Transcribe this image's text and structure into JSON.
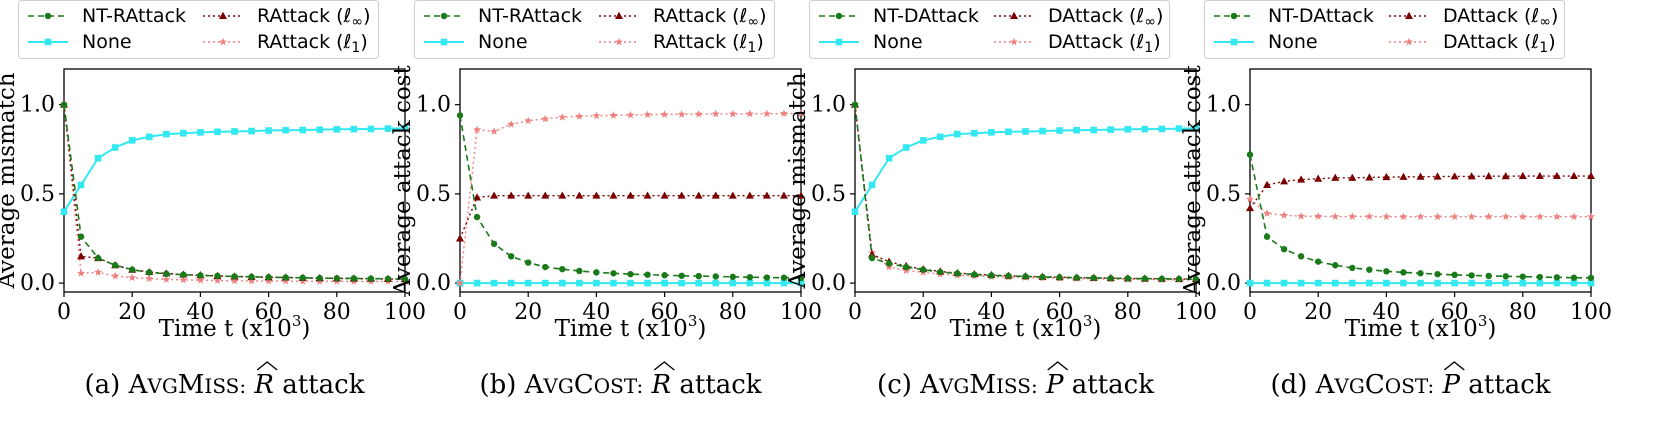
{
  "colors": {
    "nt": "#1a7a1a",
    "none": "#33e8f0",
    "linf": "#7a0000",
    "l1": "#f08080"
  },
  "chart_data": [
    {
      "type": "line",
      "caption": {
        "label": "(a)",
        "metric": "AVGMISS:",
        "metric_first": "A",
        "metric_sc1": "VG",
        "metric_cap2": "M",
        "metric_sc2": "ISS:",
        "symbol": "R",
        "suffix": "attack"
      },
      "xlabel": "Time t (x10",
      "xlabel_sup": "3",
      "xlabel_close": ")",
      "ylabel": "Average mismatch",
      "xlim": [
        0,
        100
      ],
      "ylim": [
        -0.05,
        1.2
      ],
      "xticks": [
        "0",
        "20",
        "40",
        "60",
        "80",
        "100"
      ],
      "yticks": [
        "0.0",
        "0.5",
        "1.0"
      ],
      "legend": {
        "nt": "NT-RAttack",
        "none": "None",
        "linf": "RAttack (ℓ∞)",
        "l1": "RAttack (ℓ1)"
      },
      "series": [
        {
          "key": "nt",
          "name": "NT-RAttack",
          "x": [
            0,
            5,
            10,
            15,
            20,
            25,
            30,
            35,
            40,
            45,
            50,
            55,
            60,
            65,
            70,
            75,
            80,
            85,
            90,
            95,
            100
          ],
          "values": [
            1.0,
            0.26,
            0.14,
            0.1,
            0.075,
            0.06,
            0.052,
            0.047,
            0.043,
            0.04,
            0.037,
            0.035,
            0.033,
            0.031,
            0.03,
            0.028,
            0.027,
            0.026,
            0.025,
            0.024,
            0.023
          ]
        },
        {
          "key": "none",
          "name": "None",
          "x": [
            0,
            5,
            10,
            15,
            20,
            25,
            30,
            35,
            40,
            45,
            50,
            55,
            60,
            65,
            70,
            75,
            80,
            85,
            90,
            95,
            100
          ],
          "values": [
            0.4,
            0.55,
            0.7,
            0.76,
            0.8,
            0.82,
            0.835,
            0.84,
            0.845,
            0.848,
            0.85,
            0.852,
            0.855,
            0.857,
            0.858,
            0.86,
            0.862,
            0.863,
            0.864,
            0.866,
            0.868
          ]
        },
        {
          "key": "linf",
          "name": "RAttack (ℓ∞)",
          "x": [
            0,
            5,
            10,
            15,
            20,
            25,
            30,
            35,
            40,
            45,
            50,
            55,
            60,
            65,
            70,
            75,
            80,
            85,
            90,
            95,
            100
          ],
          "values": [
            1.0,
            0.15,
            0.14,
            0.1,
            0.075,
            0.062,
            0.054,
            0.048,
            0.044,
            0.04,
            0.037,
            0.035,
            0.033,
            0.031,
            0.029,
            0.028,
            0.026,
            0.025,
            0.024,
            0.023,
            0.022
          ]
        },
        {
          "key": "l1",
          "name": "RAttack (ℓ1)",
          "x": [
            0,
            5,
            10,
            15,
            20,
            25,
            30,
            35,
            40,
            45,
            50,
            55,
            60,
            65,
            70,
            75,
            80,
            85,
            90,
            95,
            100
          ],
          "values": [
            1.0,
            0.055,
            0.06,
            0.04,
            0.03,
            0.025,
            0.02,
            0.018,
            0.016,
            0.014,
            0.013,
            0.012,
            0.011,
            0.011,
            0.01,
            0.01,
            0.01,
            0.009,
            0.009,
            0.009,
            0.009
          ]
        }
      ]
    },
    {
      "type": "line",
      "caption": {
        "label": "(b)",
        "metric": "AVGCOST:",
        "metric_first": "A",
        "metric_sc1": "VG",
        "metric_cap2": "C",
        "metric_sc2": "OST:",
        "symbol": "R",
        "suffix": "attack"
      },
      "xlabel": "Time t (x10",
      "xlabel_sup": "3",
      "xlabel_close": ")",
      "ylabel": "Average attack cost",
      "xlim": [
        0,
        100
      ],
      "ylim": [
        -0.05,
        1.2
      ],
      "xticks": [
        "0",
        "20",
        "40",
        "60",
        "80",
        "100"
      ],
      "yticks": [
        "0.0",
        "0.5",
        "1.0"
      ],
      "legend": {
        "nt": "NT-RAttack",
        "none": "None",
        "linf": "RAttack (ℓ∞)",
        "l1": "RAttack (ℓ1)"
      },
      "series": [
        {
          "key": "nt",
          "name": "NT-RAttack",
          "x": [
            0,
            5,
            10,
            15,
            20,
            25,
            30,
            35,
            40,
            45,
            50,
            55,
            60,
            65,
            70,
            75,
            80,
            85,
            90,
            95,
            100
          ],
          "values": [
            0.94,
            0.37,
            0.22,
            0.15,
            0.115,
            0.09,
            0.078,
            0.068,
            0.06,
            0.055,
            0.05,
            0.047,
            0.044,
            0.041,
            0.039,
            0.037,
            0.035,
            0.033,
            0.031,
            0.03,
            0.028
          ]
        },
        {
          "key": "none",
          "name": "None",
          "x": [
            0,
            5,
            10,
            15,
            20,
            25,
            30,
            35,
            40,
            45,
            50,
            55,
            60,
            65,
            70,
            75,
            80,
            85,
            90,
            95,
            100
          ],
          "values": [
            0,
            0,
            0,
            0,
            0,
            0,
            0,
            0,
            0,
            0,
            0,
            0,
            0,
            0,
            0,
            0,
            0,
            0,
            0,
            0,
            0
          ]
        },
        {
          "key": "linf",
          "name": "RAttack (ℓ∞)",
          "x": [
            0,
            5,
            10,
            15,
            20,
            25,
            30,
            35,
            40,
            45,
            50,
            55,
            60,
            65,
            70,
            75,
            80,
            85,
            90,
            95,
            100
          ],
          "values": [
            0.25,
            0.48,
            0.49,
            0.49,
            0.49,
            0.49,
            0.49,
            0.49,
            0.49,
            0.49,
            0.49,
            0.49,
            0.49,
            0.49,
            0.49,
            0.49,
            0.49,
            0.49,
            0.49,
            0.49,
            0.49
          ]
        },
        {
          "key": "l1",
          "name": "RAttack (ℓ1)",
          "x": [
            0,
            5,
            10,
            15,
            20,
            25,
            30,
            35,
            40,
            45,
            50,
            55,
            60,
            65,
            70,
            75,
            80,
            85,
            90,
            95,
            100
          ],
          "values": [
            0.0,
            0.86,
            0.85,
            0.89,
            0.91,
            0.92,
            0.93,
            0.935,
            0.938,
            0.94,
            0.942,
            0.944,
            0.945,
            0.946,
            0.947,
            0.948,
            0.948,
            0.949,
            0.949,
            0.95,
            0.95
          ]
        }
      ]
    },
    {
      "type": "line",
      "caption": {
        "label": "(c)",
        "metric": "AVGMISS:",
        "metric_first": "A",
        "metric_sc1": "VG",
        "metric_cap2": "M",
        "metric_sc2": "ISS:",
        "symbol": "P",
        "suffix": "attack"
      },
      "xlabel": "Time t (x10",
      "xlabel_sup": "3",
      "xlabel_close": ")",
      "ylabel": "Average mismatch",
      "xlim": [
        0,
        100
      ],
      "ylim": [
        -0.05,
        1.2
      ],
      "xticks": [
        "0",
        "20",
        "40",
        "60",
        "80",
        "100"
      ],
      "yticks": [
        "0.0",
        "0.5",
        "1.0"
      ],
      "legend": {
        "nt": "NT-DAttack",
        "none": "None",
        "linf": "DAttack (ℓ∞)",
        "l1": "DAttack (ℓ1)"
      },
      "series": [
        {
          "key": "nt",
          "name": "NT-DAttack",
          "x": [
            0,
            5,
            10,
            15,
            20,
            25,
            30,
            35,
            40,
            45,
            50,
            55,
            60,
            65,
            70,
            75,
            80,
            85,
            90,
            95,
            100
          ],
          "values": [
            1.0,
            0.14,
            0.11,
            0.09,
            0.075,
            0.062,
            0.054,
            0.048,
            0.043,
            0.04,
            0.037,
            0.034,
            0.032,
            0.03,
            0.029,
            0.027,
            0.026,
            0.025,
            0.024,
            0.023,
            0.022
          ]
        },
        {
          "key": "none",
          "name": "None",
          "x": [
            0,
            5,
            10,
            15,
            20,
            25,
            30,
            35,
            40,
            45,
            50,
            55,
            60,
            65,
            70,
            75,
            80,
            85,
            90,
            95,
            100
          ],
          "values": [
            0.4,
            0.55,
            0.7,
            0.76,
            0.8,
            0.82,
            0.835,
            0.84,
            0.845,
            0.848,
            0.85,
            0.852,
            0.855,
            0.857,
            0.858,
            0.86,
            0.862,
            0.863,
            0.864,
            0.866,
            0.868
          ]
        },
        {
          "key": "linf",
          "name": "DAttack (ℓ∞)",
          "x": [
            0,
            5,
            10,
            15,
            20,
            25,
            30,
            35,
            40,
            45,
            50,
            55,
            60,
            65,
            70,
            75,
            80,
            85,
            90,
            95,
            100
          ],
          "values": [
            1.0,
            0.16,
            0.12,
            0.095,
            0.078,
            0.065,
            0.056,
            0.05,
            0.045,
            0.041,
            0.038,
            0.035,
            0.033,
            0.031,
            0.029,
            0.028,
            0.026,
            0.025,
            0.024,
            0.023,
            0.022
          ]
        },
        {
          "key": "l1",
          "name": "DAttack (ℓ1)",
          "x": [
            0,
            5,
            10,
            15,
            20,
            25,
            30,
            35,
            40,
            45,
            50,
            55,
            60,
            65,
            70,
            75,
            80,
            85,
            90,
            95,
            100
          ],
          "values": [
            1.0,
            0.17,
            0.09,
            0.07,
            0.06,
            0.05,
            0.044,
            0.04,
            0.036,
            0.033,
            0.031,
            0.029,
            0.027,
            0.025,
            0.024,
            0.022,
            0.021,
            0.02,
            0.019,
            0.018,
            0.017
          ]
        }
      ]
    },
    {
      "type": "line",
      "caption": {
        "label": "(d)",
        "metric": "AVGCOST:",
        "metric_first": "A",
        "metric_sc1": "VG",
        "metric_cap2": "C",
        "metric_sc2": "OST:",
        "symbol": "P",
        "suffix": "attack"
      },
      "xlabel": "Time t (x10",
      "xlabel_sup": "3",
      "xlabel_close": ")",
      "ylabel": "Average attack cost",
      "xlim": [
        0,
        100
      ],
      "ylim": [
        -0.05,
        1.2
      ],
      "xticks": [
        "0",
        "20",
        "40",
        "60",
        "80",
        "100"
      ],
      "yticks": [
        "0.0",
        "0.5",
        "1.0"
      ],
      "legend": {
        "nt": "NT-DAttack",
        "none": "None",
        "linf": "DAttack (ℓ∞)",
        "l1": "DAttack (ℓ1)"
      },
      "series": [
        {
          "key": "nt",
          "name": "NT-DAttack",
          "x": [
            0,
            5,
            10,
            15,
            20,
            25,
            30,
            35,
            40,
            45,
            50,
            55,
            60,
            65,
            70,
            75,
            80,
            85,
            90,
            95,
            100
          ],
          "values": [
            0.72,
            0.26,
            0.19,
            0.15,
            0.12,
            0.1,
            0.085,
            0.075,
            0.066,
            0.06,
            0.055,
            0.05,
            0.046,
            0.043,
            0.04,
            0.038,
            0.036,
            0.034,
            0.032,
            0.03,
            0.029
          ]
        },
        {
          "key": "none",
          "name": "None",
          "x": [
            0,
            5,
            10,
            15,
            20,
            25,
            30,
            35,
            40,
            45,
            50,
            55,
            60,
            65,
            70,
            75,
            80,
            85,
            90,
            95,
            100
          ],
          "values": [
            0,
            0,
            0,
            0,
            0,
            0,
            0,
            0,
            0,
            0,
            0,
            0,
            0,
            0,
            0,
            0,
            0,
            0,
            0,
            0,
            0
          ]
        },
        {
          "key": "linf",
          "name": "DAttack (ℓ∞)",
          "x": [
            0,
            5,
            10,
            15,
            20,
            25,
            30,
            35,
            40,
            45,
            50,
            55,
            60,
            65,
            70,
            75,
            80,
            85,
            90,
            95,
            100
          ],
          "values": [
            0.42,
            0.55,
            0.57,
            0.58,
            0.585,
            0.59,
            0.59,
            0.592,
            0.594,
            0.595,
            0.596,
            0.597,
            0.598,
            0.598,
            0.599,
            0.599,
            0.6,
            0.6,
            0.6,
            0.6,
            0.6
          ]
        },
        {
          "key": "l1",
          "name": "DAttack (ℓ1)",
          "x": [
            0,
            5,
            10,
            15,
            20,
            25,
            30,
            35,
            40,
            45,
            50,
            55,
            60,
            65,
            70,
            75,
            80,
            85,
            90,
            95,
            100
          ],
          "values": [
            0.47,
            0.39,
            0.38,
            0.375,
            0.374,
            0.373,
            0.373,
            0.373,
            0.372,
            0.372,
            0.372,
            0.372,
            0.372,
            0.372,
            0.372,
            0.372,
            0.372,
            0.372,
            0.372,
            0.372,
            0.372
          ]
        }
      ]
    }
  ]
}
